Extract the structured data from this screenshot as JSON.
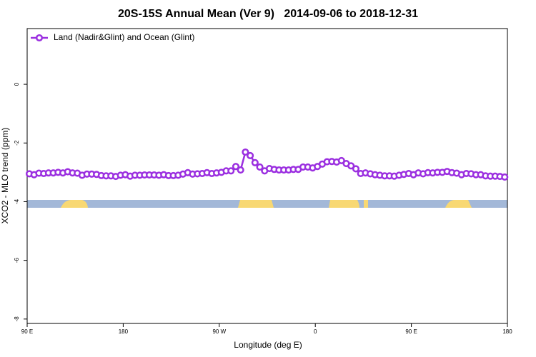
{
  "chart_data": {
    "type": "line",
    "title": "20S-15S Annual Mean (Ver 9)   2014-09-06 to 2018-12-31",
    "xlabel": "Longitude (deg E)",
    "ylabel": "XCO2 - MLO trend (ppm)",
    "xlim": [
      90,
      540
    ],
    "ylim": [
      -8.15,
      1.9
    ],
    "xticks": [
      {
        "value": 90,
        "label": "90 E"
      },
      {
        "value": 180,
        "label": "180"
      },
      {
        "value": 270,
        "label": "90 W"
      },
      {
        "value": 360,
        "label": "0"
      },
      {
        "value": 450,
        "label": "90 E"
      },
      {
        "value": 540,
        "label": "180"
      }
    ],
    "yticks": [
      0,
      -2,
      -4,
      -6,
      -8
    ],
    "legend": "top-left",
    "x": [
      92,
      96.5,
      101,
      105.5,
      110,
      114.5,
      119,
      123.5,
      128,
      132.5,
      137,
      141.5,
      146,
      150.5,
      155,
      159.5,
      164,
      168.5,
      173,
      177.5,
      182,
      186.5,
      191,
      195.5,
      200,
      204.5,
      209,
      213.5,
      218,
      222.5,
      227,
      231.5,
      236,
      240.5,
      245,
      249.5,
      254,
      258.5,
      263,
      267.5,
      272,
      276.5,
      281,
      285.5,
      290,
      294.5,
      299,
      303.5,
      308,
      312.5,
      317,
      321.5,
      326,
      330.5,
      335,
      339.5,
      344,
      348.5,
      353,
      357.5,
      362,
      366.5,
      371,
      375.5,
      380,
      384.5,
      389,
      393.5,
      398,
      402.5,
      407,
      411.5,
      416,
      420.5,
      425,
      429.5,
      434,
      438.5,
      443,
      447.5,
      452,
      456.5,
      461,
      465.5,
      470,
      474.5,
      479,
      483.5,
      488,
      492.5,
      497,
      501.5,
      506,
      510.5,
      515,
      519.5,
      524,
      528.5,
      533,
      537.5
    ],
    "series": [
      {
        "name": "Land (Nadir&Glint) and Ocean (Glint)",
        "color": "#9b2fe0",
        "values": [
          -3.05,
          -3.08,
          -3.03,
          -3.04,
          -3.02,
          -3.02,
          -3.0,
          -3.02,
          -2.98,
          -3.02,
          -3.03,
          -3.1,
          -3.06,
          -3.06,
          -3.07,
          -3.11,
          -3.12,
          -3.12,
          -3.14,
          -3.1,
          -3.08,
          -3.13,
          -3.1,
          -3.1,
          -3.09,
          -3.09,
          -3.09,
          -3.1,
          -3.08,
          -3.11,
          -3.11,
          -3.1,
          -3.06,
          -3.01,
          -3.06,
          -3.05,
          -3.04,
          -3.01,
          -3.04,
          -3.02,
          -3.0,
          -2.95,
          -2.95,
          -2.8,
          -2.92,
          -2.31,
          -2.43,
          -2.67,
          -2.82,
          -2.95,
          -2.87,
          -2.9,
          -2.92,
          -2.92,
          -2.92,
          -2.9,
          -2.9,
          -2.82,
          -2.82,
          -2.85,
          -2.8,
          -2.72,
          -2.64,
          -2.63,
          -2.65,
          -2.6,
          -2.7,
          -2.78,
          -2.88,
          -3.04,
          -3.02,
          -3.05,
          -3.08,
          -3.1,
          -3.12,
          -3.12,
          -3.13,
          -3.1,
          -3.07,
          -3.04,
          -3.08,
          -3.02,
          -3.05,
          -3.01,
          -3.02,
          -3.0,
          -3.0,
          -2.97,
          -3.01,
          -3.03,
          -3.08,
          -3.04,
          -3.05,
          -3.08,
          -3.08,
          -3.12,
          -3.13,
          -3.13,
          -3.14,
          -3.16
        ]
      }
    ]
  }
}
